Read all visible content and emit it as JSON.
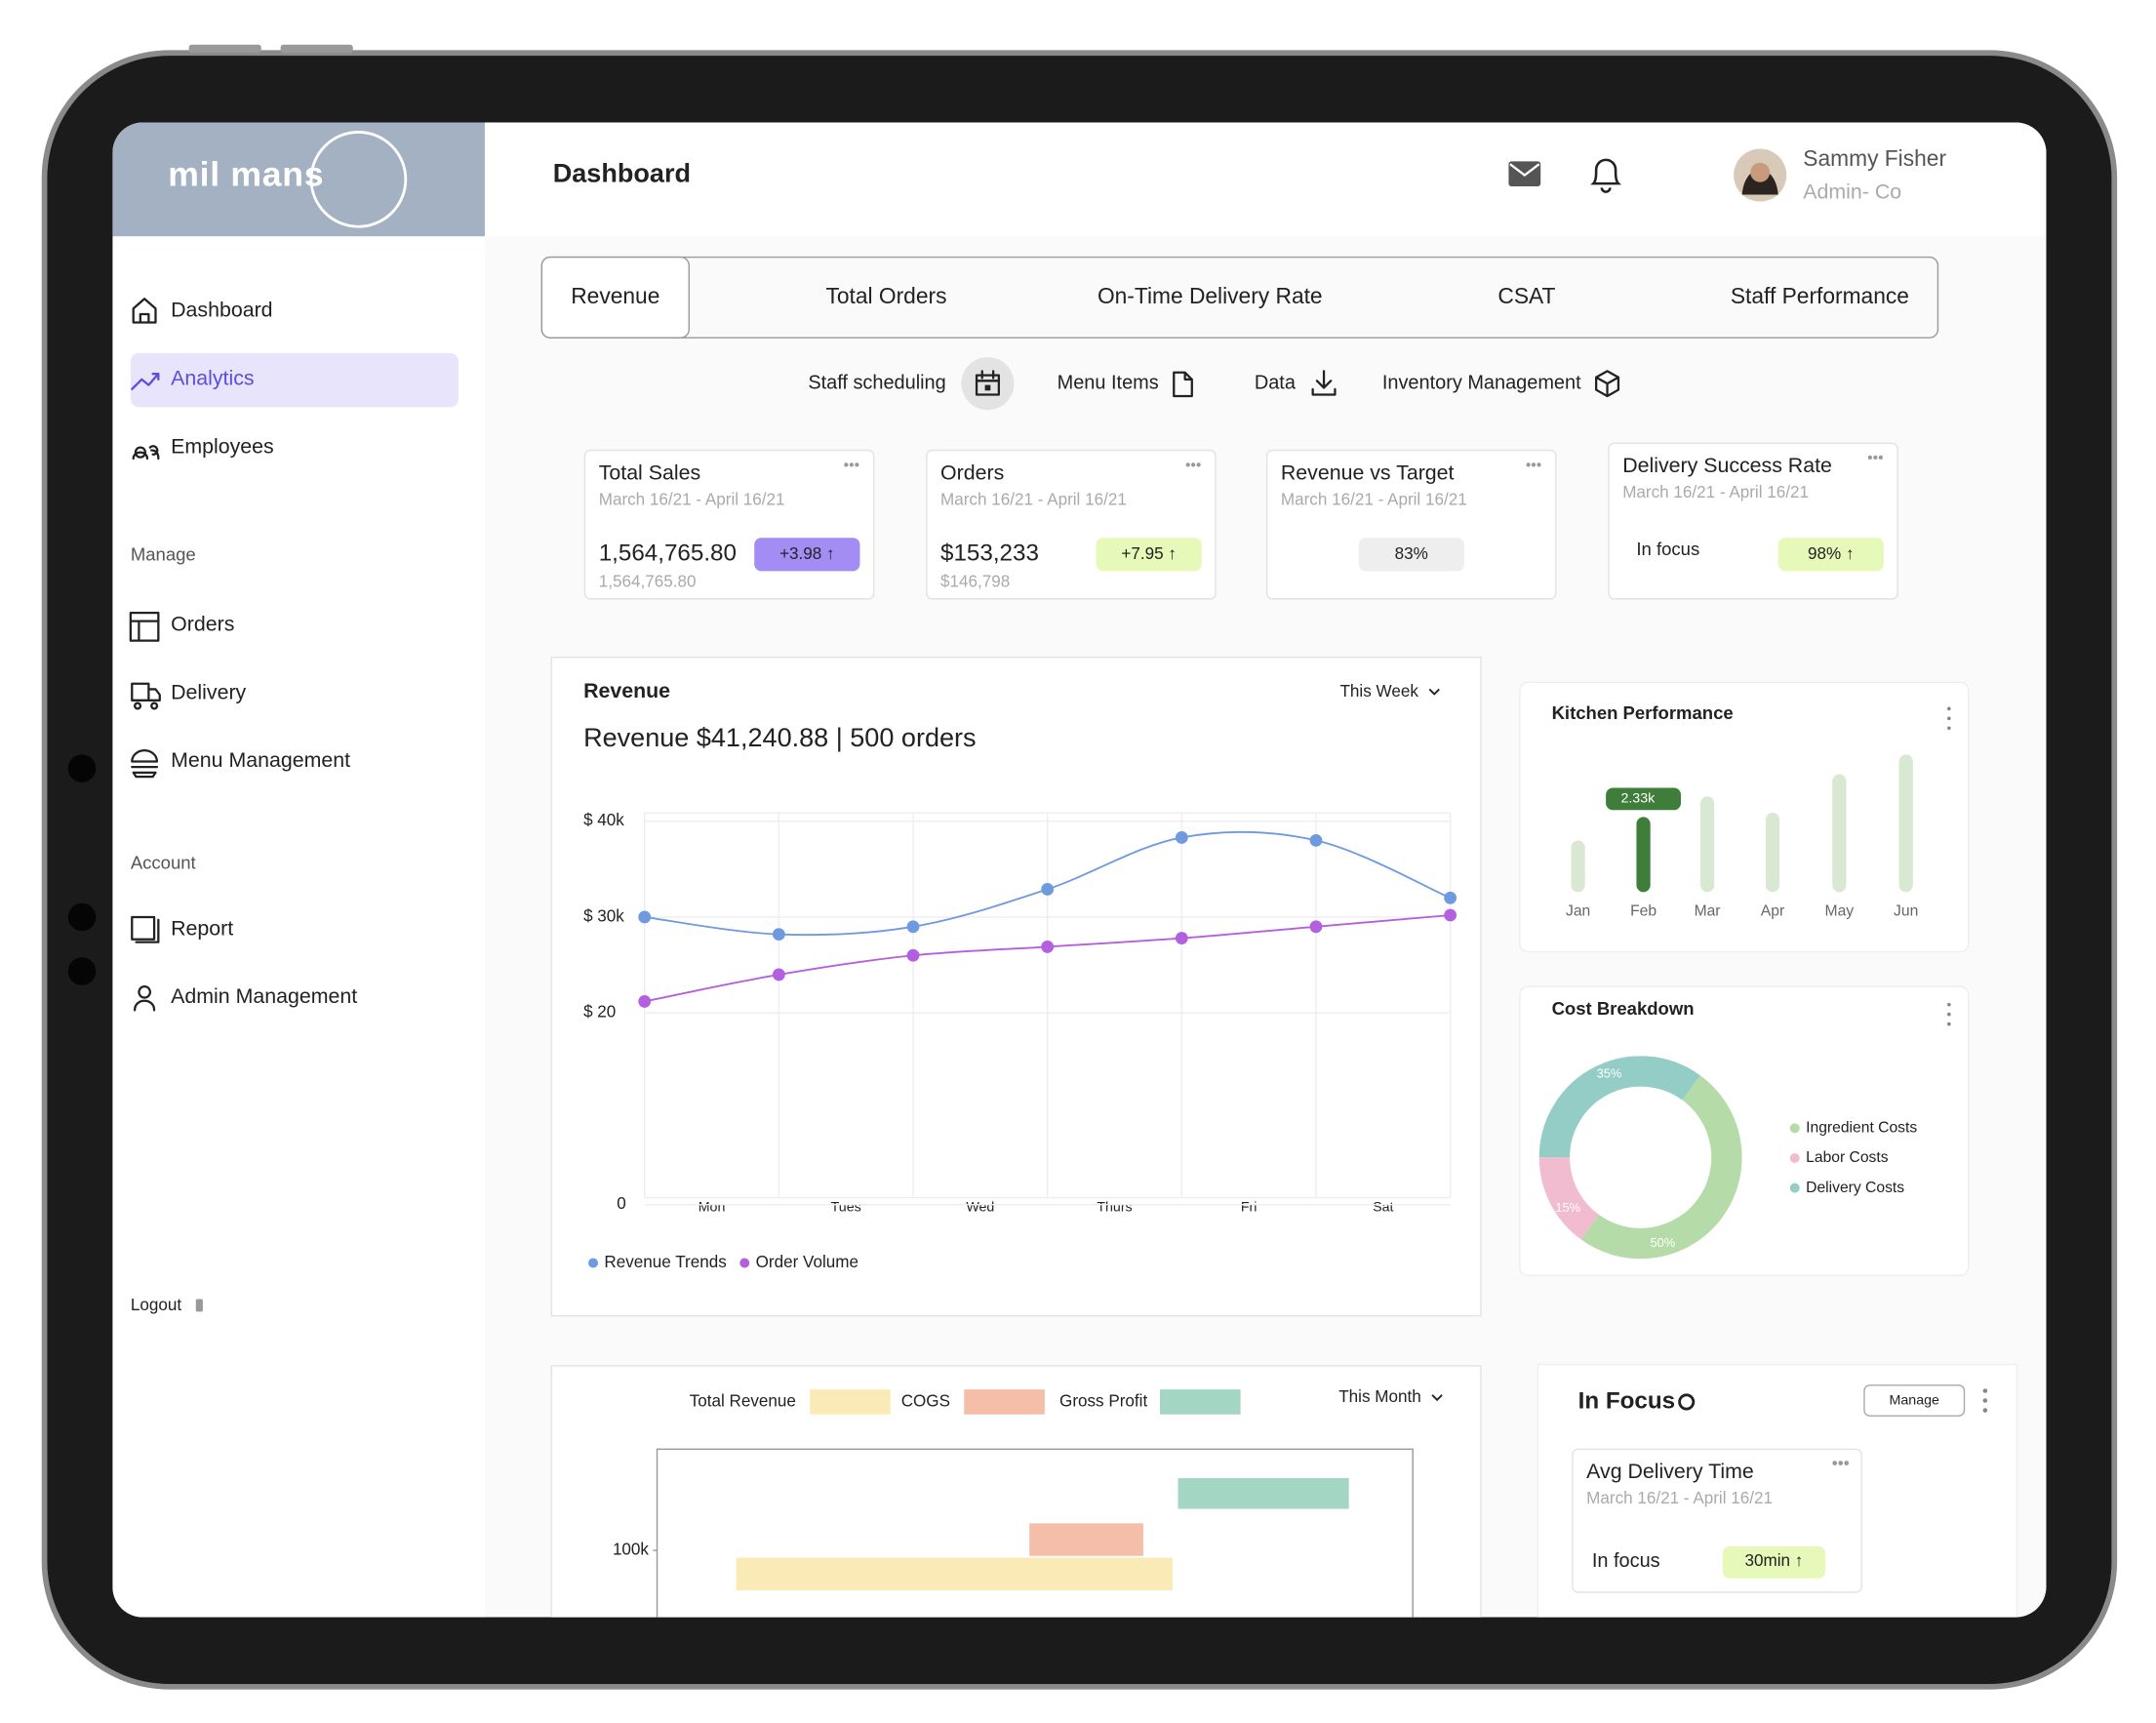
{
  "brand": "mil mans",
  "header": {
    "title": "Dashboard",
    "user_name": "Sammy Fisher",
    "user_role": "Admin- Co"
  },
  "sidebar": {
    "main": [
      "Dashboard",
      "Analytics",
      "Employees"
    ],
    "active_item": 1,
    "manage_label": "Manage",
    "manage": [
      "Orders",
      "Delivery",
      "Menu Management"
    ],
    "account_label": "Account",
    "account": [
      "Report",
      "Admin Management"
    ],
    "logout": "Logout"
  },
  "tabs": [
    "Revenue",
    "Total Orders",
    "On-Time Delivery Rate",
    "CSAT",
    "Staff Performance"
  ],
  "active_tab": 0,
  "tools": [
    "Staff scheduling",
    "Menu Items",
    "Data",
    "Inventory Management"
  ],
  "kpis": [
    {
      "title": "Total Sales",
      "date": "March 16/21 - April 16/21",
      "value": "1,564,765.80",
      "sub": "1,564,765.80",
      "badge": "+3.98 ↑"
    },
    {
      "title": "Orders",
      "date": "March 16/21 - April 16/21",
      "value": "$153,233",
      "sub": "$146,798",
      "badge": "+7.95 ↑"
    },
    {
      "title": "Revenue vs Target",
      "date": "March 16/21 - April 16/21",
      "badge": "83%"
    },
    {
      "title": "Delivery Success Rate",
      "date": "March 16/21 - April 16/21",
      "label": "In focus",
      "badge": "98% ↑"
    }
  ],
  "chart_data": [
    {
      "type": "line",
      "title": "Revenue",
      "subtitle": "Revenue $41,240.88 | 500 orders",
      "period": "This Week",
      "categories": [
        "Mon",
        "Tues",
        "Wed",
        "Thurs",
        "Fri",
        "Sat",
        null
      ],
      "series": [
        {
          "name": "Revenue Trends",
          "color": "#6f9ae0",
          "values": [
            30,
            28.2,
            29,
            32.9,
            38.3,
            38,
            32
          ]
        },
        {
          "name": "Order Volume",
          "color": "#b45fe0",
          "values": [
            21.2,
            24,
            26,
            26.9,
            27.8,
            29,
            30.2
          ]
        }
      ],
      "ylim": [
        0,
        40
      ],
      "yticks": [
        0,
        {
          "value": 20,
          "label": "$ 20"
        },
        {
          "value": 30,
          "label": "$ 30k"
        },
        {
          "value": 40,
          "label": "$ 40k"
        }
      ],
      "grid": true
    },
    {
      "type": "bar",
      "title": "Kitchen Performance",
      "categories": [
        "Jan",
        "Feb",
        "Mar",
        "Apr",
        "May",
        "Jun"
      ],
      "values": [
        1600,
        2330,
        2970,
        2460,
        3660,
        4270
      ],
      "value_labels": [
        null,
        "2.33k",
        null,
        null,
        null,
        null
      ],
      "highlight": 1,
      "color": "#d8e8d2",
      "highlight_color": "#3f7d3a"
    },
    {
      "type": "pie",
      "title": "Cost Breakdown",
      "categories": [
        "Ingredient Costs",
        "Labor Costs",
        "Delivery Costs"
      ],
      "values": [
        50,
        15,
        35
      ],
      "value_labels": [
        "50%",
        "15%",
        "35%"
      ],
      "colors": [
        "#b5dba8",
        "#f2bcd0",
        "#93cdc6"
      ],
      "donut": true
    },
    {
      "type": "range_bar",
      "period": "This Month",
      "series": [
        {
          "name": "Total Revenue",
          "color": "#faeab5",
          "values": [
            89000,
            98000
          ]
        },
        {
          "name": "COGS",
          "color": "#f4bea8",
          "values": [
            98500,
            107500
          ]
        },
        {
          "name": "Gross Profit",
          "color": "#a4d6c4",
          "values": [
            111500,
            120000
          ]
        }
      ],
      "ylim": [
        70000,
        128000
      ],
      "yticks": [
        {
          "value": 100000,
          "label": "100k"
        }
      ]
    }
  ],
  "in_focus": {
    "title": "In Focus",
    "button": "Manage",
    "card": {
      "title": "Avg Delivery Time",
      "date": "March 16/21 - April 16/21",
      "label": "In focus",
      "badge": "30min ↑"
    }
  }
}
